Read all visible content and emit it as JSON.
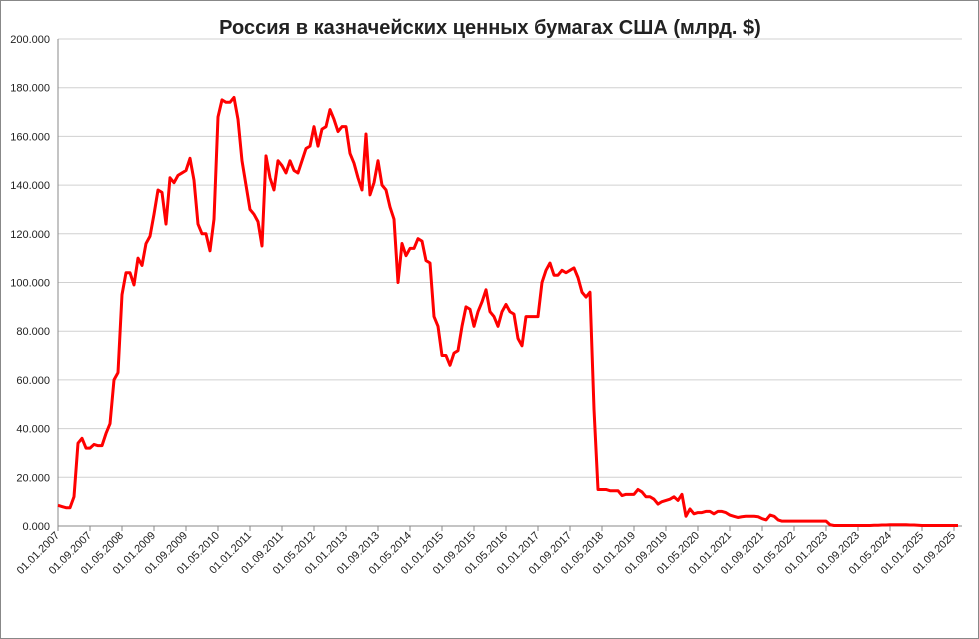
{
  "chart_data": {
    "type": "line",
    "title": "Россия в казначейских ценных бумагах США (млрд. $)",
    "categories": [
      "01.01.2007",
      null,
      null,
      null,
      null,
      null,
      null,
      null,
      "01.09.2007",
      null,
      null,
      null,
      null,
      null,
      null,
      null,
      "01.05.2008",
      null,
      null,
      null,
      null,
      null,
      null,
      null,
      "01.01.2009",
      null,
      null,
      null,
      null,
      null,
      null,
      null,
      "01.09.2009",
      null,
      null,
      null,
      null,
      null,
      null,
      null,
      "01.05.2010",
      null,
      null,
      null,
      null,
      null,
      null,
      null,
      "01.01.2011",
      null,
      null,
      null,
      null,
      null,
      null,
      null,
      "01.09.2011",
      null,
      null,
      null,
      null,
      null,
      null,
      null,
      "01.05.2012",
      null,
      null,
      null,
      null,
      null,
      null,
      null,
      "01.01.2013",
      null,
      null,
      null,
      null,
      null,
      null,
      null,
      "01.09.2013",
      null,
      null,
      null,
      null,
      null,
      null,
      null,
      "01.05.2014",
      null,
      null,
      null,
      null,
      null,
      null,
      null,
      "01.01.2015",
      null,
      null,
      null,
      null,
      null,
      null,
      null,
      "01.09.2015",
      null,
      null,
      null,
      null,
      null,
      null,
      null,
      "01.05.2016",
      null,
      null,
      null,
      null,
      null,
      null,
      null,
      "01.01.2017",
      null,
      null,
      null,
      null,
      null,
      null,
      null,
      "01.09.2017",
      null,
      null,
      null,
      null,
      null,
      null,
      null,
      "01.05.2018",
      null,
      null,
      null,
      null,
      null,
      null,
      null,
      "01.01.2019",
      null,
      null,
      null,
      null,
      null,
      null,
      null,
      "01.09.2019",
      null,
      null,
      null,
      null,
      null,
      null,
      null,
      "01.05.2020",
      null,
      null,
      null,
      null,
      null,
      null,
      null,
      "01.01.2021",
      null,
      null,
      null,
      null,
      null,
      null,
      null,
      "01.09.2021",
      null,
      null,
      null,
      null,
      null,
      null,
      null,
      "01.05.2022",
      null,
      null,
      null,
      null,
      null,
      null,
      null,
      "01.01.2023",
      null,
      null,
      null,
      null,
      null,
      null,
      null,
      "01.09.2023",
      null,
      null,
      null,
      null,
      null,
      null,
      null,
      "01.05.2024",
      null,
      null,
      null,
      null,
      null,
      null,
      null,
      "01.01.2025",
      null,
      null,
      null,
      null,
      null,
      null,
      null,
      "01.09.2025",
      null
    ],
    "values": [
      8.5,
      8,
      7.5,
      7.5,
      12,
      34,
      36,
      32,
      32,
      33.5,
      33,
      33,
      38,
      42,
      60,
      63,
      95,
      104,
      104,
      99,
      110,
      107,
      116,
      119,
      128,
      138,
      137,
      124,
      143,
      141,
      144,
      145,
      146,
      151,
      142,
      124,
      120,
      120,
      113,
      126,
      168,
      175,
      174,
      174,
      176,
      167,
      150,
      140,
      130,
      128,
      125,
      115,
      152,
      143,
      138,
      150,
      148,
      145,
      150,
      146,
      145,
      150,
      155,
      156,
      164,
      156,
      163,
      164,
      171,
      167,
      162,
      164,
      164,
      153,
      149,
      143,
      138,
      161,
      136,
      141,
      150,
      140,
      138,
      131,
      126,
      100,
      116,
      111,
      114,
      114,
      118,
      117,
      109,
      108,
      86,
      82,
      70,
      70,
      66,
      71,
      72,
      82,
      90,
      89,
      82,
      88,
      92,
      97,
      88,
      86,
      82,
      88,
      91,
      88,
      87,
      77,
      74,
      86,
      86,
      86,
      86,
      100,
      105,
      108,
      103,
      103,
      105,
      104,
      105,
      106,
      102,
      96,
      94,
      96,
      48,
      15,
      15,
      15,
      14.5,
      14.5,
      14.5,
      12.5,
      13,
      13,
      13,
      15,
      14,
      12,
      12,
      11,
      9,
      10,
      10.5,
      11,
      12,
      10.5,
      13,
      4,
      7,
      5,
      5.5,
      5.5,
      6,
      6,
      5,
      6,
      6,
      5.5,
      4.5,
      4,
      3.5,
      3.8,
      4,
      4,
      4,
      3.8,
      3,
      2.5,
      4.5,
      4,
      2.5,
      2,
      2,
      2,
      2,
      2,
      2,
      2,
      2,
      2,
      2,
      2,
      2,
      0.5,
      0.2,
      0.2,
      0.2,
      0.2,
      0.2,
      0.2,
      0.2,
      0.2,
      0.2,
      0.2,
      0.3,
      0.3,
      0.4,
      0.4,
      0.5,
      0.5,
      0.5,
      0.5,
      0.5,
      0.4,
      0.4,
      0.3,
      0.2,
      0.2,
      0.2,
      0.2,
      0.2,
      0.2,
      0.2,
      0.2,
      0.2,
      0.2
    ],
    "color": "#ff0000",
    "ylim": [
      0,
      200
    ],
    "yticks": [
      {
        "value": 0,
        "label": "0.000"
      },
      {
        "value": 20,
        "label": "20.000"
      },
      {
        "value": 40,
        "label": "40.000"
      },
      {
        "value": 60,
        "label": "60.000"
      },
      {
        "value": 80,
        "label": "80.000"
      },
      {
        "value": 100,
        "label": "100.000"
      },
      {
        "value": 120,
        "label": "120.000"
      },
      {
        "value": 140,
        "label": "140.000"
      },
      {
        "value": 160,
        "label": "160.000"
      },
      {
        "value": 180,
        "label": "180.000"
      },
      {
        "value": 200,
        "label": "200.000"
      }
    ],
    "grid": true
  }
}
